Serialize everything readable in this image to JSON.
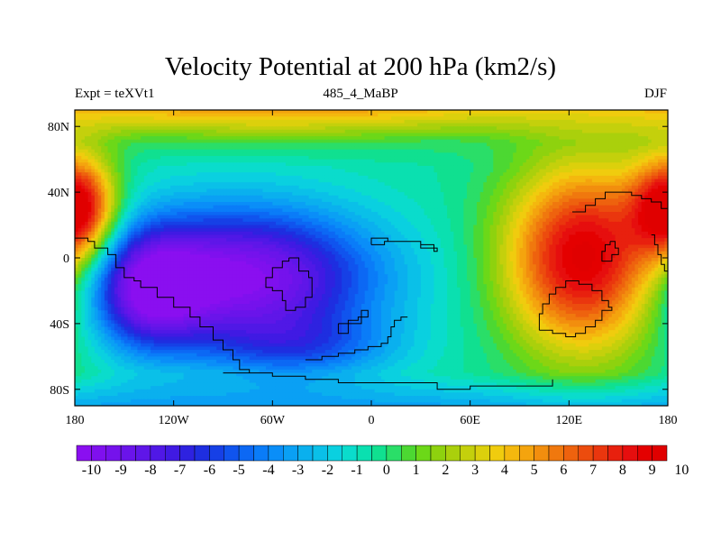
{
  "title": "Velocity Potential at 200 hPa (km2/s)",
  "subtitle_left": "Expt = teXVt1",
  "subtitle_center": "485_4_MaBP",
  "subtitle_right": "DJF",
  "chart_data": {
    "type": "contour-map",
    "variable": "Velocity Potential",
    "level": "200 hPa",
    "units": "km2/s",
    "x_axis": {
      "range": [
        -180,
        180
      ],
      "ticks": [
        -180,
        -120,
        -60,
        0,
        60,
        120,
        180
      ],
      "tick_labels": [
        "180",
        "120W",
        "60W",
        "0",
        "60E",
        "120E",
        "180"
      ]
    },
    "y_axis": {
      "range": [
        -90,
        90
      ],
      "ticks": [
        80,
        40,
        0,
        -40,
        -80
      ],
      "tick_labels": [
        "80N",
        "40N",
        "0",
        "40S",
        "80S"
      ]
    },
    "colorbar": {
      "levels": [
        -10,
        -9.5,
        -9,
        -8.5,
        -8,
        -7.5,
        -7,
        -6.5,
        -6,
        -5.5,
        -5,
        -4.5,
        -4,
        -3.5,
        -3,
        -2.5,
        -2,
        -1.5,
        -1,
        -0.5,
        0,
        0.5,
        1,
        1.5,
        2,
        2.5,
        3,
        3.5,
        4,
        4.5,
        5,
        5.5,
        6,
        6.5,
        7,
        7.5,
        8,
        8.5,
        9,
        9.5,
        10
      ],
      "labels": [
        "-10",
        "-9",
        "-8",
        "-7",
        "-6",
        "-5",
        "-4",
        "-3",
        "-2",
        "-1",
        "0",
        "1",
        "2",
        "3",
        "4",
        "5",
        "6",
        "7",
        "8",
        "9",
        "10"
      ],
      "colors": [
        "#8a0ff0",
        "#7f10ee",
        "#7512ec",
        "#6a14ea",
        "#5f16e8",
        "#5018e6",
        "#401ae3",
        "#2e22e0",
        "#1e2ee0",
        "#1640e6",
        "#1054ee",
        "#0c68f4",
        "#0a7cf8",
        "#0a8ef8",
        "#0aa0f4",
        "#0ab0ee",
        "#0ac0e8",
        "#0ad0e0",
        "#0adccc",
        "#0ae0b0",
        "#10e090",
        "#2ade68",
        "#4cd832",
        "#6cd818",
        "#8ed20e",
        "#aad00c",
        "#c4d00c",
        "#dcd00c",
        "#f0cc0e",
        "#f4b80e",
        "#f4a40e",
        "#f28e0e",
        "#f0780e",
        "#ee620e",
        "#ec4c0e",
        "#ea360e",
        "#e8200e",
        "#e60e0e",
        "#e40000",
        "#e00000"
      ]
    },
    "fields": {
      "background": 0.0,
      "north_polar_cap": 2.6,
      "south_polar_band": -2.6,
      "tropical_minimum": {
        "center_lon": -80,
        "center_lat": -12,
        "min_value": -10.3
      },
      "east_pacific_min_extension": {
        "center_lon": -135,
        "center_lat": -20,
        "value": -10.2
      },
      "tropical_maximum": {
        "center_lon": 130,
        "center_lat": 0,
        "max_value": 10.3
      },
      "nw_pacific_maximum": {
        "center_lon": -178,
        "center_lat": 30,
        "max_value": 9.6
      }
    },
    "land_outline": "continental outlines (coastlines) drawn in thin black"
  }
}
